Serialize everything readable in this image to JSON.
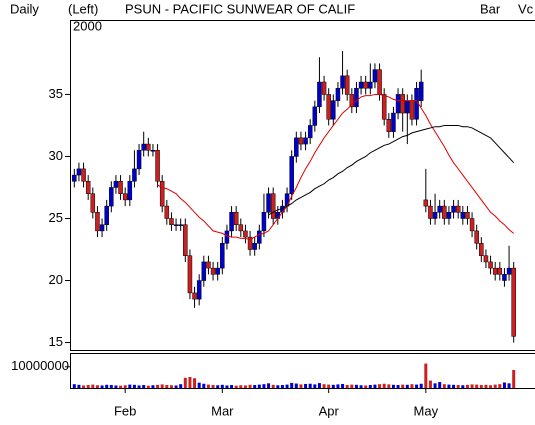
{
  "chart_data": {
    "type": "candlestick",
    "period": "Daily",
    "axis_side": "(Left)",
    "year": "2000",
    "title": "PSUN - PACIFIC SUNWEAR OF CALIF",
    "style": "Bar",
    "volume_label": "Vc",
    "volume_label_color": "#00b000",
    "up_color": "#0000cc",
    "down_color": "#cc2020",
    "categories": [
      null,
      null,
      null,
      null,
      null,
      null,
      null,
      null,
      null,
      null,
      null,
      "Feb",
      null,
      null,
      null,
      null,
      null,
      null,
      null,
      null,
      null,
      null,
      null,
      null,
      null,
      null,
      null,
      null,
      null,
      null,
      null,
      null,
      "Mar",
      null,
      null,
      null,
      null,
      null,
      null,
      null,
      null,
      null,
      null,
      null,
      null,
      null,
      null,
      null,
      null,
      null,
      null,
      null,
      null,
      null,
      null,
      "Apr",
      null,
      null,
      null,
      null,
      null,
      null,
      null,
      null,
      null,
      null,
      null,
      null,
      null,
      null,
      null,
      null,
      null,
      null,
      null,
      null,
      "May",
      null,
      null,
      null,
      null,
      null,
      null,
      null,
      null,
      null,
      null,
      null,
      null,
      null,
      null,
      null,
      null,
      null,
      null,
      null
    ],
    "open": [
      28,
      28.5,
      29,
      28,
      27,
      25.5,
      24,
      24.5,
      26,
      27.5,
      28,
      27,
      26.5,
      28,
      29,
      30.5,
      31,
      30.5,
      30.5,
      28,
      26,
      25,
      24.5,
      24.5,
      24.5,
      22,
      19,
      18.5,
      20,
      21.5,
      21,
      20.5,
      21,
      23,
      24,
      25.5,
      24.5,
      24,
      23.5,
      22.5,
      23,
      24,
      25.5,
      27,
      25,
      25.5,
      26,
      27,
      30,
      31.5,
      31,
      31.5,
      32.5,
      34,
      36,
      35,
      33,
      34.5,
      35.5,
      36.5,
      35,
      34,
      35.5,
      36,
      35.5,
      36,
      37,
      35,
      33,
      32,
      33.5,
      35,
      33.5,
      34.5,
      33,
      34.5,
      26.5,
      26,
      25,
      25.5,
      26,
      25,
      25.5,
      26,
      25,
      25.5,
      25,
      24,
      23,
      22,
      21.5,
      21,
      21,
      20,
      20.5,
      21
    ],
    "high": [
      29,
      29.5,
      29.5,
      28.5,
      27.5,
      26,
      25,
      26.5,
      28,
      28.5,
      28.5,
      27.5,
      28.5,
      30.5,
      31,
      32,
      31.5,
      31,
      31,
      28.5,
      26.5,
      25.5,
      25,
      25,
      25,
      22.5,
      19.5,
      20.5,
      22,
      22,
      21.5,
      21.5,
      23.5,
      24.5,
      26,
      26,
      25,
      24.5,
      24,
      23.5,
      24.5,
      27,
      27.5,
      27.5,
      26,
      26.5,
      27.5,
      30.5,
      32,
      32,
      32,
      33,
      34.5,
      38,
      36.5,
      35.5,
      35,
      36,
      38.5,
      37,
      35.5,
      36,
      36.5,
      36.5,
      37.5,
      37.5,
      37.5,
      35.5,
      33.5,
      34,
      35.5,
      35.5,
      35,
      35,
      36,
      37,
      29,
      26.5,
      27,
      26.5,
      26.5,
      26,
      26.5,
      26.5,
      26,
      26,
      25.5,
      24.5,
      23.5,
      22.5,
      22,
      21.5,
      21.5,
      21,
      22.8,
      21.5
    ],
    "low": [
      27.5,
      28,
      27.5,
      26.5,
      25,
      23.5,
      23.5,
      24,
      25.5,
      27,
      26.5,
      26,
      26,
      27.5,
      28.5,
      30,
      30,
      30,
      27.5,
      25.5,
      24.5,
      24,
      24,
      24,
      21.5,
      18.5,
      17.8,
      18,
      19.5,
      20.5,
      20,
      20,
      20.5,
      22.5,
      23.5,
      24,
      23.5,
      23,
      22,
      22,
      22.5,
      23.5,
      25,
      24.5,
      24.5,
      25,
      25.5,
      26.5,
      29.5,
      30.5,
      30.5,
      31,
      32,
      33.5,
      34.5,
      32.5,
      32.5,
      34,
      35,
      34.5,
      33.5,
      33.5,
      35,
      35,
      35,
      35.5,
      34.5,
      32.5,
      31.5,
      31.5,
      33,
      32,
      31,
      32.5,
      32.5,
      34,
      25.5,
      24.5,
      24.5,
      25,
      24.5,
      24.5,
      25,
      25,
      24.5,
      24.5,
      23.5,
      22.5,
      21.5,
      21,
      20.5,
      20,
      20,
      19.5,
      20,
      15
    ],
    "close": [
      28.5,
      29,
      28,
      27,
      25.5,
      24,
      24.5,
      26,
      27.5,
      28,
      27,
      26.5,
      28,
      29,
      30.5,
      31,
      30.5,
      30.5,
      28,
      26,
      25,
      24.5,
      24.5,
      24.5,
      22,
      19,
      18.5,
      20,
      21.5,
      21,
      20.5,
      21,
      23,
      24,
      25.5,
      24.5,
      24,
      23.5,
      22.5,
      23,
      24,
      25.5,
      27,
      25,
      25.5,
      26,
      27,
      30,
      31.5,
      31,
      31.5,
      32.5,
      34,
      36,
      35,
      33,
      34.5,
      35.5,
      36.5,
      35,
      34,
      35.5,
      36,
      35.5,
      36,
      37,
      35,
      33,
      32,
      33.5,
      35,
      33.5,
      34.5,
      33,
      35.5,
      36,
      26,
      25,
      25.5,
      26,
      25,
      25.5,
      26,
      25.5,
      25.5,
      25,
      24,
      23,
      22,
      21.5,
      21,
      20.5,
      20.5,
      20.5,
      21,
      15.5
    ],
    "ylim": [
      14.4,
      41
    ],
    "yticks": [
      15,
      20,
      25,
      30,
      35
    ],
    "moving_averages": [
      {
        "color": "#e00000",
        "values": [
          null,
          null,
          null,
          null,
          null,
          null,
          null,
          null,
          null,
          null,
          null,
          null,
          null,
          null,
          null,
          null,
          null,
          null,
          27.7,
          27.5,
          27.4,
          27.2,
          27,
          26.6,
          26.3,
          25.9,
          25.5,
          25.1,
          24.8,
          24.4,
          24,
          23.9,
          23.8,
          23.6,
          23.5,
          23.5,
          23.4,
          23.4,
          23.3,
          23.5,
          23.7,
          23.8,
          24,
          24.5,
          25,
          25.5,
          26,
          26.8,
          27.5,
          28.3,
          29,
          29.6,
          30.3,
          30.9,
          31.5,
          32,
          32.5,
          33,
          33.5,
          33.8,
          34.2,
          34.5,
          34.8,
          34.9,
          34.9,
          35,
          35,
          34.9,
          34.8,
          34.6,
          34.5,
          34.5,
          34.5,
          34.5,
          34.5,
          33.9,
          33.3,
          32.6,
          32,
          31.4,
          30.8,
          30.1,
          29.5,
          29,
          28.5,
          28,
          27.5,
          27,
          26.5,
          26,
          25.5,
          25.2,
          24.8,
          24.5,
          24.1,
          23.8
        ]
      },
      {
        "color": "#000000",
        "values": [
          null,
          null,
          null,
          null,
          null,
          null,
          null,
          null,
          null,
          null,
          null,
          null,
          null,
          null,
          null,
          null,
          null,
          null,
          null,
          null,
          null,
          null,
          null,
          null,
          null,
          null,
          null,
          null,
          null,
          null,
          null,
          null,
          null,
          null,
          null,
          null,
          null,
          null,
          null,
          null,
          null,
          null,
          25.3,
          25.5,
          25.7,
          25.8,
          26,
          26.2,
          26.5,
          26.7,
          26.9,
          27.1,
          27.4,
          27.6,
          27.8,
          28.1,
          28.3,
          28.6,
          28.8,
          29.1,
          29.3,
          29.6,
          29.8,
          30,
          30.3,
          30.5,
          30.7,
          30.9,
          31,
          31.2,
          31.4,
          31.6,
          31.7,
          31.9,
          32,
          32.1,
          32.2,
          32.3,
          32.4,
          32.4,
          32.5,
          32.5,
          32.5,
          32.5,
          32.4,
          32.4,
          32.3,
          32.1,
          31.9,
          31.7,
          31.5,
          31.1,
          30.7,
          30.3,
          29.9,
          29.5
        ]
      }
    ],
    "volume": {
      "values": [
        1800000,
        1500000,
        1200000,
        1400000,
        1600000,
        1300000,
        1200000,
        1500000,
        1400000,
        1200000,
        1100000,
        1300000,
        1600000,
        1500000,
        1200000,
        1400000,
        1100000,
        1300000,
        1500000,
        1700000,
        1400000,
        1300000,
        1200000,
        1800000,
        4800000,
        5200000,
        4600000,
        2500000,
        2000000,
        1600000,
        1400000,
        1300000,
        1500000,
        1200000,
        1400000,
        1100000,
        1300000,
        1200000,
        1500000,
        1400000,
        1600000,
        1800000,
        2200000,
        1500000,
        1300000,
        1400000,
        1600000,
        2400000,
        2100000,
        1700000,
        1900000,
        2000000,
        1700000,
        2300000,
        1800000,
        1600000,
        1500000,
        1700000,
        1900000,
        1400000,
        1600000,
        1500000,
        1300000,
        1200000,
        1400000,
        1600000,
        1800000,
        2000000,
        1700000,
        1500000,
        1400000,
        1600000,
        1500000,
        1800000,
        1600000,
        2000000,
        11500000,
        3500000,
        2200000,
        2800000,
        1800000,
        1600000,
        1500000,
        1400000,
        1300000,
        1500000,
        1700000,
        1600000,
        1400000,
        1500000,
        1300000,
        1600000,
        1800000,
        2600000,
        2200000,
        8500000
      ],
      "ylim": [
        0,
        16500000
      ],
      "yticks": [
        10000000
      ]
    }
  }
}
